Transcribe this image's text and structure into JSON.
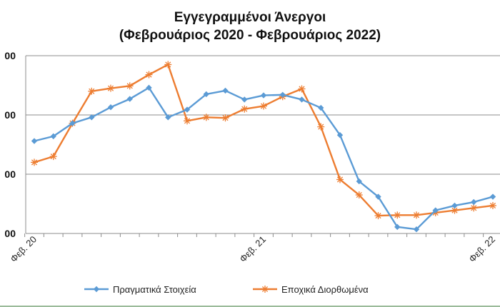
{
  "chart_data": {
    "type": "line",
    "title_lines": [
      "Εγγεγραμμένοι Άνεργοι",
      "(Φεβρουάριος 2020 - Φεβρουάριος 2022)"
    ],
    "x": [
      "Φεβ. 20",
      "",
      "",
      "",
      "",
      "",
      "",
      "",
      "",
      "",
      "",
      "",
      "Φεβ. 21",
      "",
      "",
      "",
      "",
      "",
      "",
      "",
      "",
      "",
      "",
      "",
      "Φεβ. 22"
    ],
    "x_tick_labels": [
      "Φεβ. 20",
      "Φεβ. 21",
      "Φεβ. 22"
    ],
    "y_tick_labels": [
      "00",
      "00",
      "00",
      "00"
    ],
    "ylim": [
      0,
      3
    ],
    "grid": {
      "x": false,
      "y": true
    },
    "legend_position": "bottom",
    "series": [
      {
        "name": "Πραγματικά Στοιχεία",
        "color": "#5b9bd5",
        "marker": "diamond",
        "values": [
          1.56,
          1.64,
          1.86,
          1.96,
          2.13,
          2.27,
          2.46,
          1.96,
          2.09,
          2.35,
          2.41,
          2.26,
          2.33,
          2.34,
          2.26,
          2.12,
          1.66,
          0.88,
          0.62,
          0.11,
          0.07,
          0.39,
          0.47,
          0.53,
          0.62
        ]
      },
      {
        "name": "Εποχικά Διορθωμένα",
        "color": "#ed7d31",
        "marker": "star",
        "values": [
          1.2,
          1.3,
          1.86,
          2.4,
          2.45,
          2.49,
          2.68,
          2.85,
          1.9,
          1.96,
          1.95,
          2.1,
          2.15,
          2.31,
          2.44,
          1.8,
          0.91,
          0.65,
          0.3,
          0.31,
          0.31,
          0.35,
          0.39,
          0.43,
          0.47
        ]
      }
    ]
  }
}
